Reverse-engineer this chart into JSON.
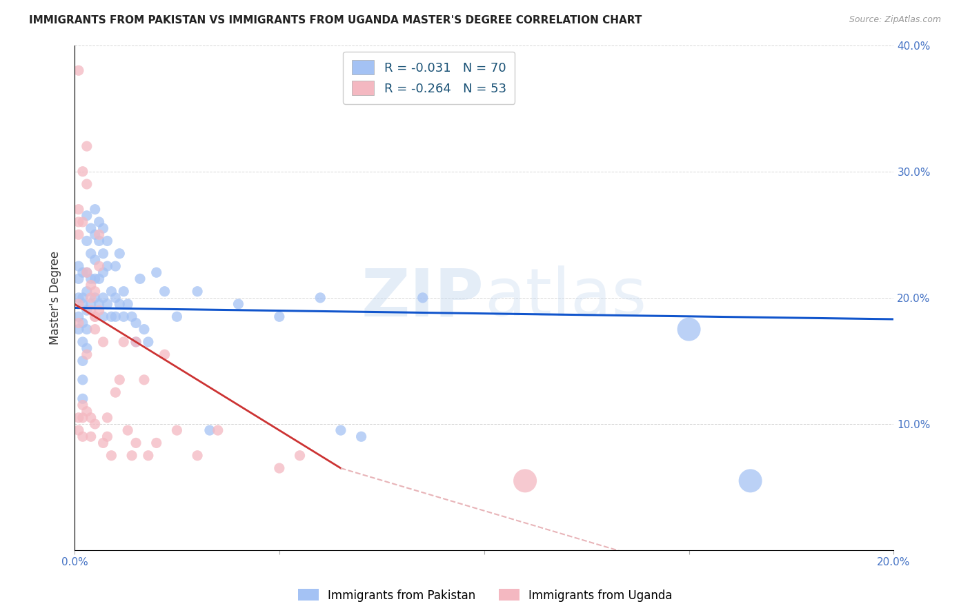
{
  "title": "IMMIGRANTS FROM PAKISTAN VS IMMIGRANTS FROM UGANDA MASTER'S DEGREE CORRELATION CHART",
  "source": "Source: ZipAtlas.com",
  "ylabel": "Master's Degree",
  "xlim": [
    0.0,
    0.2
  ],
  "ylim": [
    0.0,
    0.4
  ],
  "xticks": [
    0.0,
    0.05,
    0.1,
    0.15,
    0.2
  ],
  "yticks": [
    0.0,
    0.1,
    0.2,
    0.3,
    0.4
  ],
  "blue_color": "#a4c2f4",
  "pink_color": "#f4b8c1",
  "blue_line_color": "#1155cc",
  "pink_line_color": "#cc3333",
  "pink_dash_color": "#e8b4b8",
  "blue_R": -0.031,
  "blue_N": 70,
  "pink_R": -0.264,
  "pink_N": 53,
  "bottom_legend1": "Immigrants from Pakistan",
  "bottom_legend2": "Immigrants from Uganda",
  "dot_size": 120,
  "large_dot_size": 600,
  "pakistan_x": [
    0.001,
    0.001,
    0.001,
    0.001,
    0.001,
    0.002,
    0.002,
    0.002,
    0.002,
    0.002,
    0.002,
    0.002,
    0.002,
    0.003,
    0.003,
    0.003,
    0.003,
    0.003,
    0.003,
    0.003,
    0.004,
    0.004,
    0.004,
    0.004,
    0.005,
    0.005,
    0.005,
    0.005,
    0.005,
    0.006,
    0.006,
    0.006,
    0.006,
    0.007,
    0.007,
    0.007,
    0.007,
    0.007,
    0.008,
    0.008,
    0.008,
    0.009,
    0.009,
    0.01,
    0.01,
    0.01,
    0.011,
    0.011,
    0.012,
    0.012,
    0.013,
    0.014,
    0.015,
    0.015,
    0.016,
    0.017,
    0.018,
    0.02,
    0.022,
    0.025,
    0.03,
    0.033,
    0.04,
    0.05,
    0.06,
    0.065,
    0.07,
    0.085,
    0.15,
    0.165
  ],
  "pakistan_y": [
    0.2,
    0.215,
    0.225,
    0.185,
    0.175,
    0.2,
    0.22,
    0.195,
    0.18,
    0.165,
    0.15,
    0.135,
    0.12,
    0.265,
    0.245,
    0.22,
    0.205,
    0.19,
    0.175,
    0.16,
    0.255,
    0.235,
    0.215,
    0.195,
    0.27,
    0.25,
    0.23,
    0.215,
    0.2,
    0.26,
    0.245,
    0.215,
    0.195,
    0.255,
    0.235,
    0.22,
    0.2,
    0.185,
    0.245,
    0.225,
    0.195,
    0.205,
    0.185,
    0.225,
    0.2,
    0.185,
    0.235,
    0.195,
    0.205,
    0.185,
    0.195,
    0.185,
    0.18,
    0.165,
    0.215,
    0.175,
    0.165,
    0.22,
    0.205,
    0.185,
    0.205,
    0.095,
    0.195,
    0.185,
    0.2,
    0.095,
    0.09,
    0.2,
    0.175,
    0.055
  ],
  "pakistan_large": [
    0,
    0,
    0,
    0,
    0,
    0,
    0,
    0,
    0,
    0,
    0,
    0,
    0,
    0,
    0,
    0,
    0,
    0,
    0,
    0,
    0,
    0,
    0,
    0,
    0,
    0,
    0,
    0,
    0,
    0,
    0,
    0,
    0,
    0,
    0,
    0,
    0,
    0,
    0,
    0,
    0,
    0,
    0,
    0,
    0,
    0,
    0,
    0,
    0,
    0,
    0,
    0,
    0,
    0,
    0,
    0,
    0,
    0,
    0,
    0,
    0,
    0,
    0,
    0,
    0,
    0,
    0,
    0,
    1,
    1
  ],
  "uganda_x": [
    0.001,
    0.001,
    0.001,
    0.001,
    0.001,
    0.001,
    0.001,
    0.001,
    0.002,
    0.002,
    0.002,
    0.002,
    0.002,
    0.003,
    0.003,
    0.003,
    0.003,
    0.003,
    0.004,
    0.004,
    0.004,
    0.004,
    0.004,
    0.005,
    0.005,
    0.005,
    0.005,
    0.005,
    0.006,
    0.006,
    0.006,
    0.007,
    0.007,
    0.008,
    0.008,
    0.009,
    0.01,
    0.011,
    0.012,
    0.013,
    0.014,
    0.015,
    0.015,
    0.017,
    0.018,
    0.02,
    0.022,
    0.025,
    0.03,
    0.035,
    0.05,
    0.055,
    0.11
  ],
  "uganda_y": [
    0.38,
    0.27,
    0.26,
    0.25,
    0.195,
    0.18,
    0.105,
    0.095,
    0.3,
    0.26,
    0.115,
    0.105,
    0.09,
    0.32,
    0.29,
    0.22,
    0.155,
    0.11,
    0.21,
    0.2,
    0.19,
    0.105,
    0.09,
    0.205,
    0.185,
    0.185,
    0.175,
    0.1,
    0.25,
    0.225,
    0.19,
    0.165,
    0.085,
    0.105,
    0.09,
    0.075,
    0.125,
    0.135,
    0.165,
    0.095,
    0.075,
    0.165,
    0.085,
    0.135,
    0.075,
    0.085,
    0.155,
    0.095,
    0.075,
    0.095,
    0.065,
    0.075,
    0.055
  ],
  "uganda_large": [
    0,
    0,
    0,
    0,
    0,
    0,
    0,
    0,
    0,
    0,
    0,
    0,
    0,
    0,
    0,
    0,
    0,
    0,
    0,
    0,
    0,
    0,
    0,
    0,
    0,
    0,
    0,
    0,
    0,
    0,
    0,
    0,
    0,
    0,
    0,
    0,
    0,
    0,
    0,
    0,
    0,
    0,
    0,
    0,
    0,
    0,
    0,
    0,
    0,
    0,
    0,
    0,
    1
  ]
}
